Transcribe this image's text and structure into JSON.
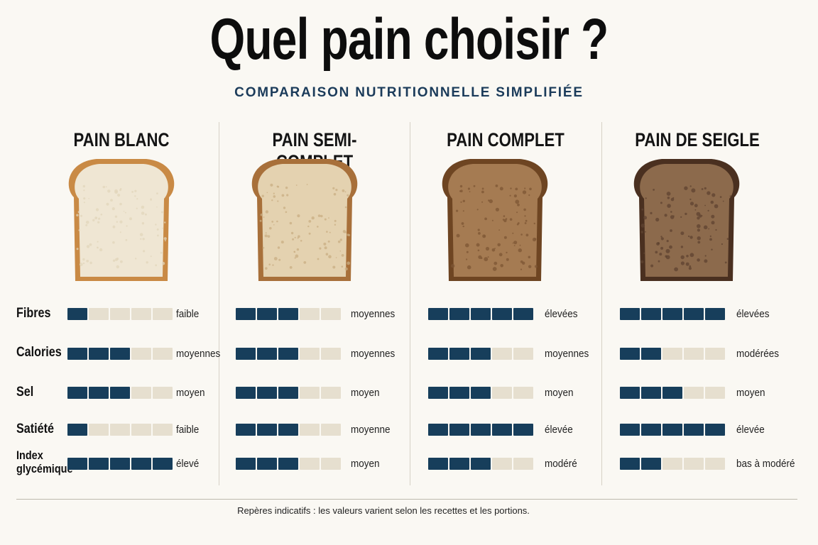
{
  "title": "Quel pain choisir ?",
  "subtitle": "COMPARAISON NUTRITIONNELLE SIMPLIFIÉE",
  "criteria": [
    "Fibres",
    "Calories",
    "Sel",
    "Satiété"
  ],
  "criteria_last": [
    "Index",
    "glycémique"
  ],
  "columns": [
    {
      "name": "PAIN BLANC",
      "colors": {
        "crust": "#c98a45",
        "crumb": "#efe6d3",
        "crumb_dark": "#e2d5bb"
      },
      "values": [
        {
          "level": 1,
          "label": "faible"
        },
        {
          "level": 3,
          "label": "moyennes"
        },
        {
          "level": 3,
          "label": "moyen"
        },
        {
          "level": 1,
          "label": "faible"
        },
        {
          "level": 5,
          "label": "élevé"
        }
      ]
    },
    {
      "name": "PAIN SEMI-COMPLET",
      "colors": {
        "crust": "#a8703a",
        "crumb": "#e4d2b0",
        "crumb_dark": "#c9ae83"
      },
      "values": [
        {
          "level": 3,
          "label": "moyennes"
        },
        {
          "level": 3,
          "label": "moyennes"
        },
        {
          "level": 3,
          "label": "moyen"
        },
        {
          "level": 3,
          "label": "moyenne"
        },
        {
          "level": 3,
          "label": "moyen"
        }
      ]
    },
    {
      "name": "PAIN COMPLET",
      "colors": {
        "crust": "#6e4522",
        "crumb": "#a57b52",
        "crumb_dark": "#7d5634"
      },
      "values": [
        {
          "level": 5,
          "label": "élevées"
        },
        {
          "level": 3,
          "label": "moyennes"
        },
        {
          "level": 3,
          "label": "moyen"
        },
        {
          "level": 5,
          "label": "élevée"
        },
        {
          "level": 3,
          "label": "modéré"
        }
      ]
    },
    {
      "name": "PAIN DE SEIGLE",
      "colors": {
        "crust": "#4a3020",
        "crumb": "#8c6a4c",
        "crumb_dark": "#5f4330"
      },
      "values": [
        {
          "level": 5,
          "label": "élevées"
        },
        {
          "level": 2,
          "label": "modérées"
        },
        {
          "level": 3,
          "label": "moyen"
        },
        {
          "level": 5,
          "label": "élevée"
        },
        {
          "level": 2,
          "label": "bas à modéré"
        }
      ]
    }
  ],
  "footer": "Repères indicatifs : les valeurs varient selon les recettes et les portions."
}
